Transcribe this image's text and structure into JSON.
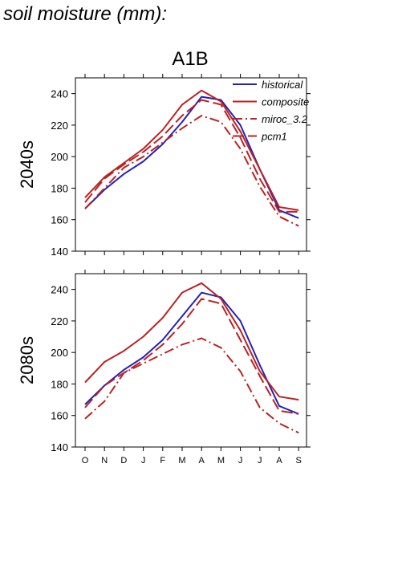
{
  "page_title": "soil moisture (mm):",
  "scenario": "A1B",
  "months": [
    "O",
    "N",
    "D",
    "J",
    "F",
    "M",
    "A",
    "M",
    "J",
    "J",
    "A",
    "S"
  ],
  "legend": [
    "historical",
    "composite",
    "miroc_3.2",
    "pcm1"
  ],
  "colors": {
    "historical": "#2222bb",
    "red": "#bb2222",
    "axis": "#000000"
  },
  "chart_data": [
    {
      "type": "line",
      "panel": "2040s",
      "ylim": [
        140,
        250
      ],
      "yticks": [
        140,
        160,
        180,
        200,
        220,
        240
      ],
      "categories": [
        "O",
        "N",
        "D",
        "J",
        "F",
        "M",
        "A",
        "M",
        "J",
        "J",
        "A",
        "S"
      ],
      "series": [
        {
          "name": "historical",
          "style": "solid",
          "color": "#2222bb",
          "values": [
            167,
            179,
            189,
            197,
            208,
            222,
            238,
            236,
            220,
            192,
            166,
            161
          ]
        },
        {
          "name": "composite",
          "style": "solid",
          "color": "#bb2222",
          "values": [
            174,
            187,
            196,
            205,
            217,
            233,
            242,
            235,
            216,
            192,
            168,
            166
          ]
        },
        {
          "name": "miroc_3.2",
          "style": "dashdot",
          "color": "#bb2222",
          "values": [
            167,
            180,
            193,
            200,
            209,
            218,
            226,
            222,
            205,
            181,
            162,
            156
          ]
        },
        {
          "name": "pcm1",
          "style": "dash",
          "color": "#bb2222",
          "values": [
            171,
            186,
            195,
            203,
            213,
            226,
            236,
            233,
            212,
            186,
            165,
            165
          ]
        }
      ]
    },
    {
      "type": "line",
      "panel": "2080s",
      "ylim": [
        140,
        250
      ],
      "yticks": [
        140,
        160,
        180,
        200,
        220,
        240
      ],
      "categories": [
        "O",
        "N",
        "D",
        "J",
        "F",
        "M",
        "A",
        "M",
        "J",
        "J",
        "A",
        "S"
      ],
      "series": [
        {
          "name": "historical",
          "style": "solid",
          "color": "#2222bb",
          "values": [
            167,
            179,
            189,
            197,
            208,
            223,
            238,
            235,
            220,
            192,
            166,
            161
          ]
        },
        {
          "name": "composite",
          "style": "solid",
          "color": "#bb2222",
          "values": [
            181,
            194,
            201,
            210,
            222,
            238,
            244,
            234,
            214,
            188,
            172,
            170
          ]
        },
        {
          "name": "miroc_3.2",
          "style": "dashdot",
          "color": "#bb2222",
          "values": [
            158,
            169,
            187,
            193,
            199,
            205,
            209,
            203,
            188,
            165,
            155,
            149
          ]
        },
        {
          "name": "pcm1",
          "style": "dash",
          "color": "#bb2222",
          "values": [
            165,
            179,
            187,
            195,
            205,
            218,
            234,
            231,
            208,
            185,
            163,
            161
          ]
        }
      ]
    }
  ]
}
